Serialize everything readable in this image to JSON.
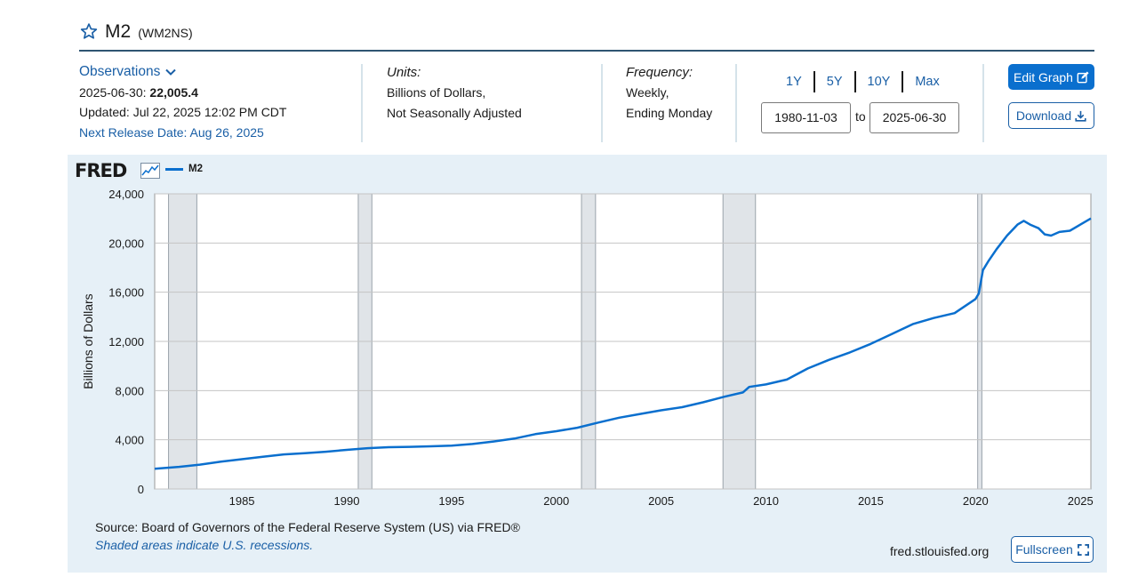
{
  "header": {
    "title": "M2",
    "series_id": "(WM2NS)"
  },
  "observations": {
    "label": "Observations",
    "latest_date_label": "2025-06-30:",
    "latest_value": "22,005.4",
    "updated": "Updated: Jul 22, 2025 12:02 PM CDT",
    "next_release": "Next Release Date: Aug 26, 2025"
  },
  "units": {
    "label": "Units:",
    "line1": "Billions of Dollars,",
    "line2": "Not Seasonally Adjusted"
  },
  "frequency": {
    "label": "Frequency:",
    "line1": "Weekly,",
    "line2": "Ending Monday"
  },
  "range": {
    "buttons": [
      "1Y",
      "5Y",
      "10Y",
      "Max"
    ],
    "start": "1980-11-03",
    "to_label": "to",
    "end": "2025-06-30"
  },
  "actions": {
    "edit_graph": "Edit Graph",
    "download": "Download",
    "fullscreen": "Fullscreen"
  },
  "graph": {
    "logo": "FRED",
    "legend": "M2",
    "source": "Source: Board of Governors of the Federal Reserve System (US) via FRED®",
    "note": "Shaded areas indicate U.S. recessions.",
    "site": "fred.stlouisfed.org"
  },
  "colors": {
    "line": "#0a6fce",
    "recession": "#e0e4e8",
    "accent": "#1a5fa6"
  },
  "chart_data": {
    "type": "line",
    "title": "M2",
    "xlabel": "",
    "ylabel": "Billions of Dollars",
    "xlim": [
      1980.84,
      2025.5
    ],
    "ylim": [
      0,
      24000
    ],
    "yticks": [
      0,
      4000,
      8000,
      12000,
      16000,
      20000,
      24000
    ],
    "ytick_labels": [
      "0",
      "4,000",
      "8,000",
      "12,000",
      "16,000",
      "20,000",
      "24,000"
    ],
    "xticks": [
      1985,
      1990,
      1995,
      2000,
      2005,
      2010,
      2015,
      2020,
      2025
    ],
    "recessions": [
      [
        1981.5,
        1982.85
      ],
      [
        1990.55,
        1991.2
      ],
      [
        2001.2,
        2001.87
      ],
      [
        2007.95,
        2009.5
      ],
      [
        2020.1,
        2020.3
      ]
    ],
    "series": [
      {
        "name": "M2",
        "x": [
          1980.84,
          1982.0,
          1983.0,
          1984.0,
          1985.0,
          1986.0,
          1987.0,
          1988.0,
          1989.0,
          1990.0,
          1991.0,
          1992.0,
          1993.0,
          1994.0,
          1995.0,
          1996.0,
          1997.0,
          1998.0,
          1999.0,
          2000.0,
          2001.0,
          2002.0,
          2003.0,
          2004.0,
          2005.0,
          2006.0,
          2007.0,
          2008.0,
          2008.9,
          2009.2,
          2010.0,
          2011.0,
          2012.0,
          2013.0,
          2014.0,
          2015.0,
          2016.0,
          2017.0,
          2018.0,
          2019.0,
          2020.0,
          2020.15,
          2020.35,
          2020.6,
          2021.0,
          2021.5,
          2022.0,
          2022.3,
          2022.6,
          2023.0,
          2023.3,
          2023.6,
          2024.0,
          2024.5,
          2025.0,
          2025.5
        ],
        "y": [
          1650,
          1800,
          1980,
          2220,
          2420,
          2620,
          2810,
          2910,
          3030,
          3180,
          3320,
          3400,
          3430,
          3470,
          3520,
          3660,
          3860,
          4100,
          4460,
          4700,
          4980,
          5400,
          5800,
          6100,
          6400,
          6650,
          7050,
          7500,
          7850,
          8300,
          8500,
          8900,
          9800,
          10500,
          11100,
          11800,
          12600,
          13400,
          13900,
          14300,
          15450,
          15900,
          17800,
          18500,
          19500,
          20600,
          21500,
          21800,
          21500,
          21200,
          20700,
          20600,
          20900,
          21000,
          21500,
          22000
        ]
      }
    ]
  }
}
